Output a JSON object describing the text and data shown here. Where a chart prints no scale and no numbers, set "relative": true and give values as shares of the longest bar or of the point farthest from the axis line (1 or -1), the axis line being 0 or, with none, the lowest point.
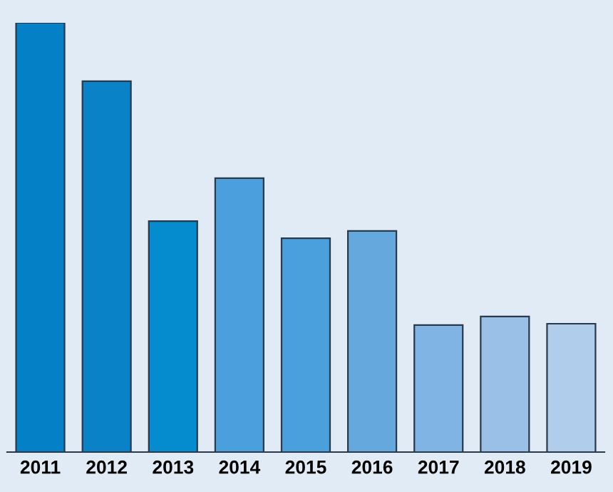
{
  "chart_data": {
    "type": "bar",
    "relative": true,
    "categories": [
      "2011",
      "2012",
      "2013",
      "2014",
      "2015",
      "2016",
      "2017",
      "2018",
      "2019"
    ],
    "values": [
      1,
      0.864,
      0.538,
      0.638,
      0.498,
      0.515,
      0.296,
      0.316,
      0.299
    ],
    "colors": [
      "#0480c6",
      "#0a82c8",
      "#048ccf",
      "#4a9fdc",
      "#4aa0dc",
      "#64a8de",
      "#80b4e4",
      "#9ac0e8",
      "#b0cdec"
    ],
    "grid": false,
    "legend": false
  }
}
